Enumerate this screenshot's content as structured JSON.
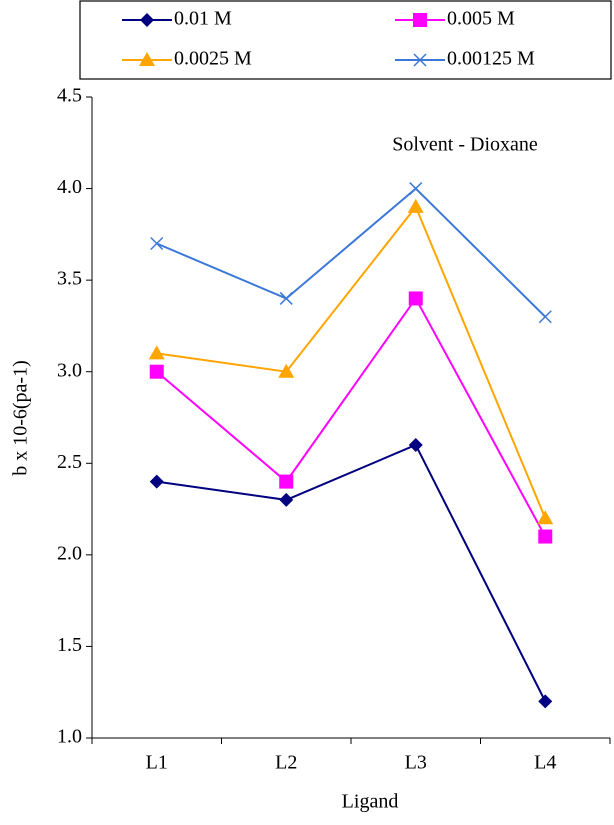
{
  "chart_data": {
    "type": "line",
    "categories": [
      "L1",
      "L2",
      "L3",
      "L4"
    ],
    "series": [
      {
        "name": "0.01 M",
        "color": "#000080",
        "marker": "diamond",
        "values": [
          2.4,
          2.3,
          2.6,
          1.2
        ]
      },
      {
        "name": "0.005 M",
        "color": "#ff00ff",
        "marker": "square",
        "values": [
          3.0,
          2.4,
          3.4,
          2.1
        ]
      },
      {
        "name": "0.0025 M",
        "color": "#ffa500",
        "marker": "triangle",
        "values": [
          3.1,
          3.0,
          3.9,
          2.2
        ]
      },
      {
        "name": "0.00125 M",
        "color": "#3c78d8",
        "marker": "x",
        "values": [
          3.7,
          3.4,
          4.0,
          3.3
        ]
      }
    ],
    "ylim": [
      1.0,
      4.5
    ],
    "yticks": [
      {
        "value": 1.0,
        "label": "1.0"
      },
      1.5,
      {
        "value": 2.0,
        "label": "2.0"
      },
      2.5,
      {
        "value": 3.0,
        "label": "3.0"
      },
      3.5,
      {
        "value": 4.0,
        "label": "4.0"
      },
      4.5
    ],
    "xlabel": "Ligand",
    "ylabel": "b x 10-6(pa-1)",
    "annotation": "Solvent - Dioxane",
    "grid": false
  }
}
